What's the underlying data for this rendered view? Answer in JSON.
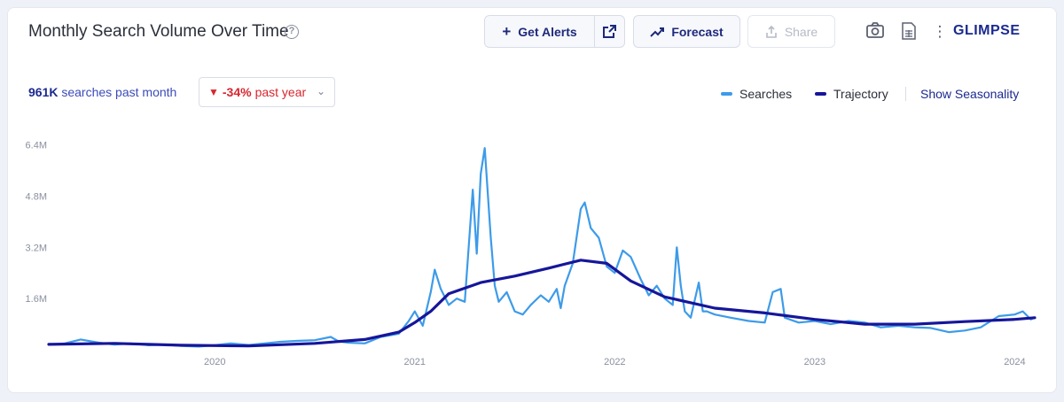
{
  "header": {
    "title": "Monthly Search Volume Over Time",
    "help_icon": "question-circle-icon",
    "buttons": {
      "alerts": "Get Alerts",
      "forecast": "Forecast",
      "share": "Share"
    },
    "logo": "GLIMPSE"
  },
  "stats": {
    "volume_value": "961K",
    "volume_label": "searches past month",
    "yoy_value": "-34%",
    "yoy_label": "past year"
  },
  "legend": {
    "searches": "Searches",
    "trajectory": "Trajectory",
    "seasonality_link": "Show Seasonality"
  },
  "colors": {
    "searches": "#3d9be9",
    "trajectory": "#16169a",
    "negative": "#d8262e"
  },
  "chart_data": {
    "type": "line",
    "x_tick_labels": [
      "2020",
      "2021",
      "2022",
      "2023",
      "2024"
    ],
    "y_tick_labels": [
      "6.4M",
      "4.8M",
      "3.2M",
      "1.6M"
    ],
    "y_ticks": [
      6.4,
      4.8,
      3.2,
      1.6
    ],
    "ylim": [
      0,
      6.5
    ],
    "xlim": [
      2019.17,
      2024.1
    ],
    "grid": false,
    "legend_position": "top-right",
    "series": [
      {
        "name": "Searches",
        "x": [
          2019.17,
          2019.25,
          2019.33,
          2019.42,
          2019.5,
          2019.58,
          2019.67,
          2019.75,
          2019.83,
          2019.92,
          2020.0,
          2020.08,
          2020.17,
          2020.25,
          2020.33,
          2020.42,
          2020.5,
          2020.58,
          2020.62,
          2020.67,
          2020.75,
          2020.83,
          2020.92,
          2020.97,
          2021.0,
          2021.04,
          2021.08,
          2021.1,
          2021.13,
          2021.17,
          2021.21,
          2021.25,
          2021.29,
          2021.31,
          2021.33,
          2021.35,
          2021.38,
          2021.4,
          2021.42,
          2021.46,
          2021.5,
          2021.54,
          2021.58,
          2021.63,
          2021.67,
          2021.71,
          2021.73,
          2021.75,
          2021.79,
          2021.83,
          2021.85,
          2021.88,
          2021.92,
          2021.96,
          2022.0,
          2022.04,
          2022.08,
          2022.13,
          2022.17,
          2022.21,
          2022.25,
          2022.29,
          2022.31,
          2022.33,
          2022.35,
          2022.38,
          2022.42,
          2022.44,
          2022.46,
          2022.5,
          2022.58,
          2022.67,
          2022.75,
          2022.79,
          2022.83,
          2022.85,
          2022.92,
          2023.0,
          2023.08,
          2023.17,
          2023.25,
          2023.33,
          2023.42,
          2023.5,
          2023.58,
          2023.67,
          2023.75,
          2023.83,
          2023.92,
          2024.0,
          2024.04,
          2024.08,
          2024.1
        ],
        "values": [
          0.16,
          0.2,
          0.32,
          0.22,
          0.16,
          0.2,
          0.14,
          0.16,
          0.12,
          0.1,
          0.14,
          0.2,
          0.15,
          0.2,
          0.25,
          0.28,
          0.3,
          0.4,
          0.26,
          0.22,
          0.2,
          0.4,
          0.5,
          0.9,
          1.2,
          0.75,
          1.8,
          2.5,
          1.9,
          1.4,
          1.6,
          1.5,
          5.0,
          3.0,
          5.5,
          6.3,
          3.5,
          2.0,
          1.5,
          1.8,
          1.2,
          1.1,
          1.4,
          1.7,
          1.5,
          1.9,
          1.3,
          2.0,
          2.7,
          4.4,
          4.6,
          3.8,
          3.5,
          2.6,
          2.4,
          3.1,
          2.9,
          2.2,
          1.7,
          2.0,
          1.6,
          1.4,
          3.2,
          2.0,
          1.2,
          1.0,
          2.1,
          1.2,
          1.2,
          1.1,
          1.0,
          0.9,
          0.85,
          1.8,
          1.9,
          1.0,
          0.85,
          0.9,
          0.8,
          0.9,
          0.85,
          0.7,
          0.75,
          0.7,
          0.68,
          0.55,
          0.6,
          0.7,
          1.05,
          1.1,
          1.2,
          0.95,
          1.0
        ]
      },
      {
        "name": "Trajectory",
        "x": [
          2019.17,
          2019.5,
          2019.83,
          2020.17,
          2020.5,
          2020.75,
          2020.92,
          2021.0,
          2021.08,
          2021.17,
          2021.33,
          2021.5,
          2021.67,
          2021.83,
          2021.96,
          2022.08,
          2022.25,
          2022.5,
          2022.75,
          2023.0,
          2023.25,
          2023.5,
          2023.75,
          2024.0,
          2024.1
        ],
        "values": [
          0.17,
          0.2,
          0.14,
          0.12,
          0.2,
          0.32,
          0.55,
          0.85,
          1.2,
          1.75,
          2.1,
          2.3,
          2.55,
          2.8,
          2.7,
          2.15,
          1.65,
          1.3,
          1.15,
          0.95,
          0.8,
          0.8,
          0.88,
          0.95,
          1.0
        ]
      }
    ]
  }
}
